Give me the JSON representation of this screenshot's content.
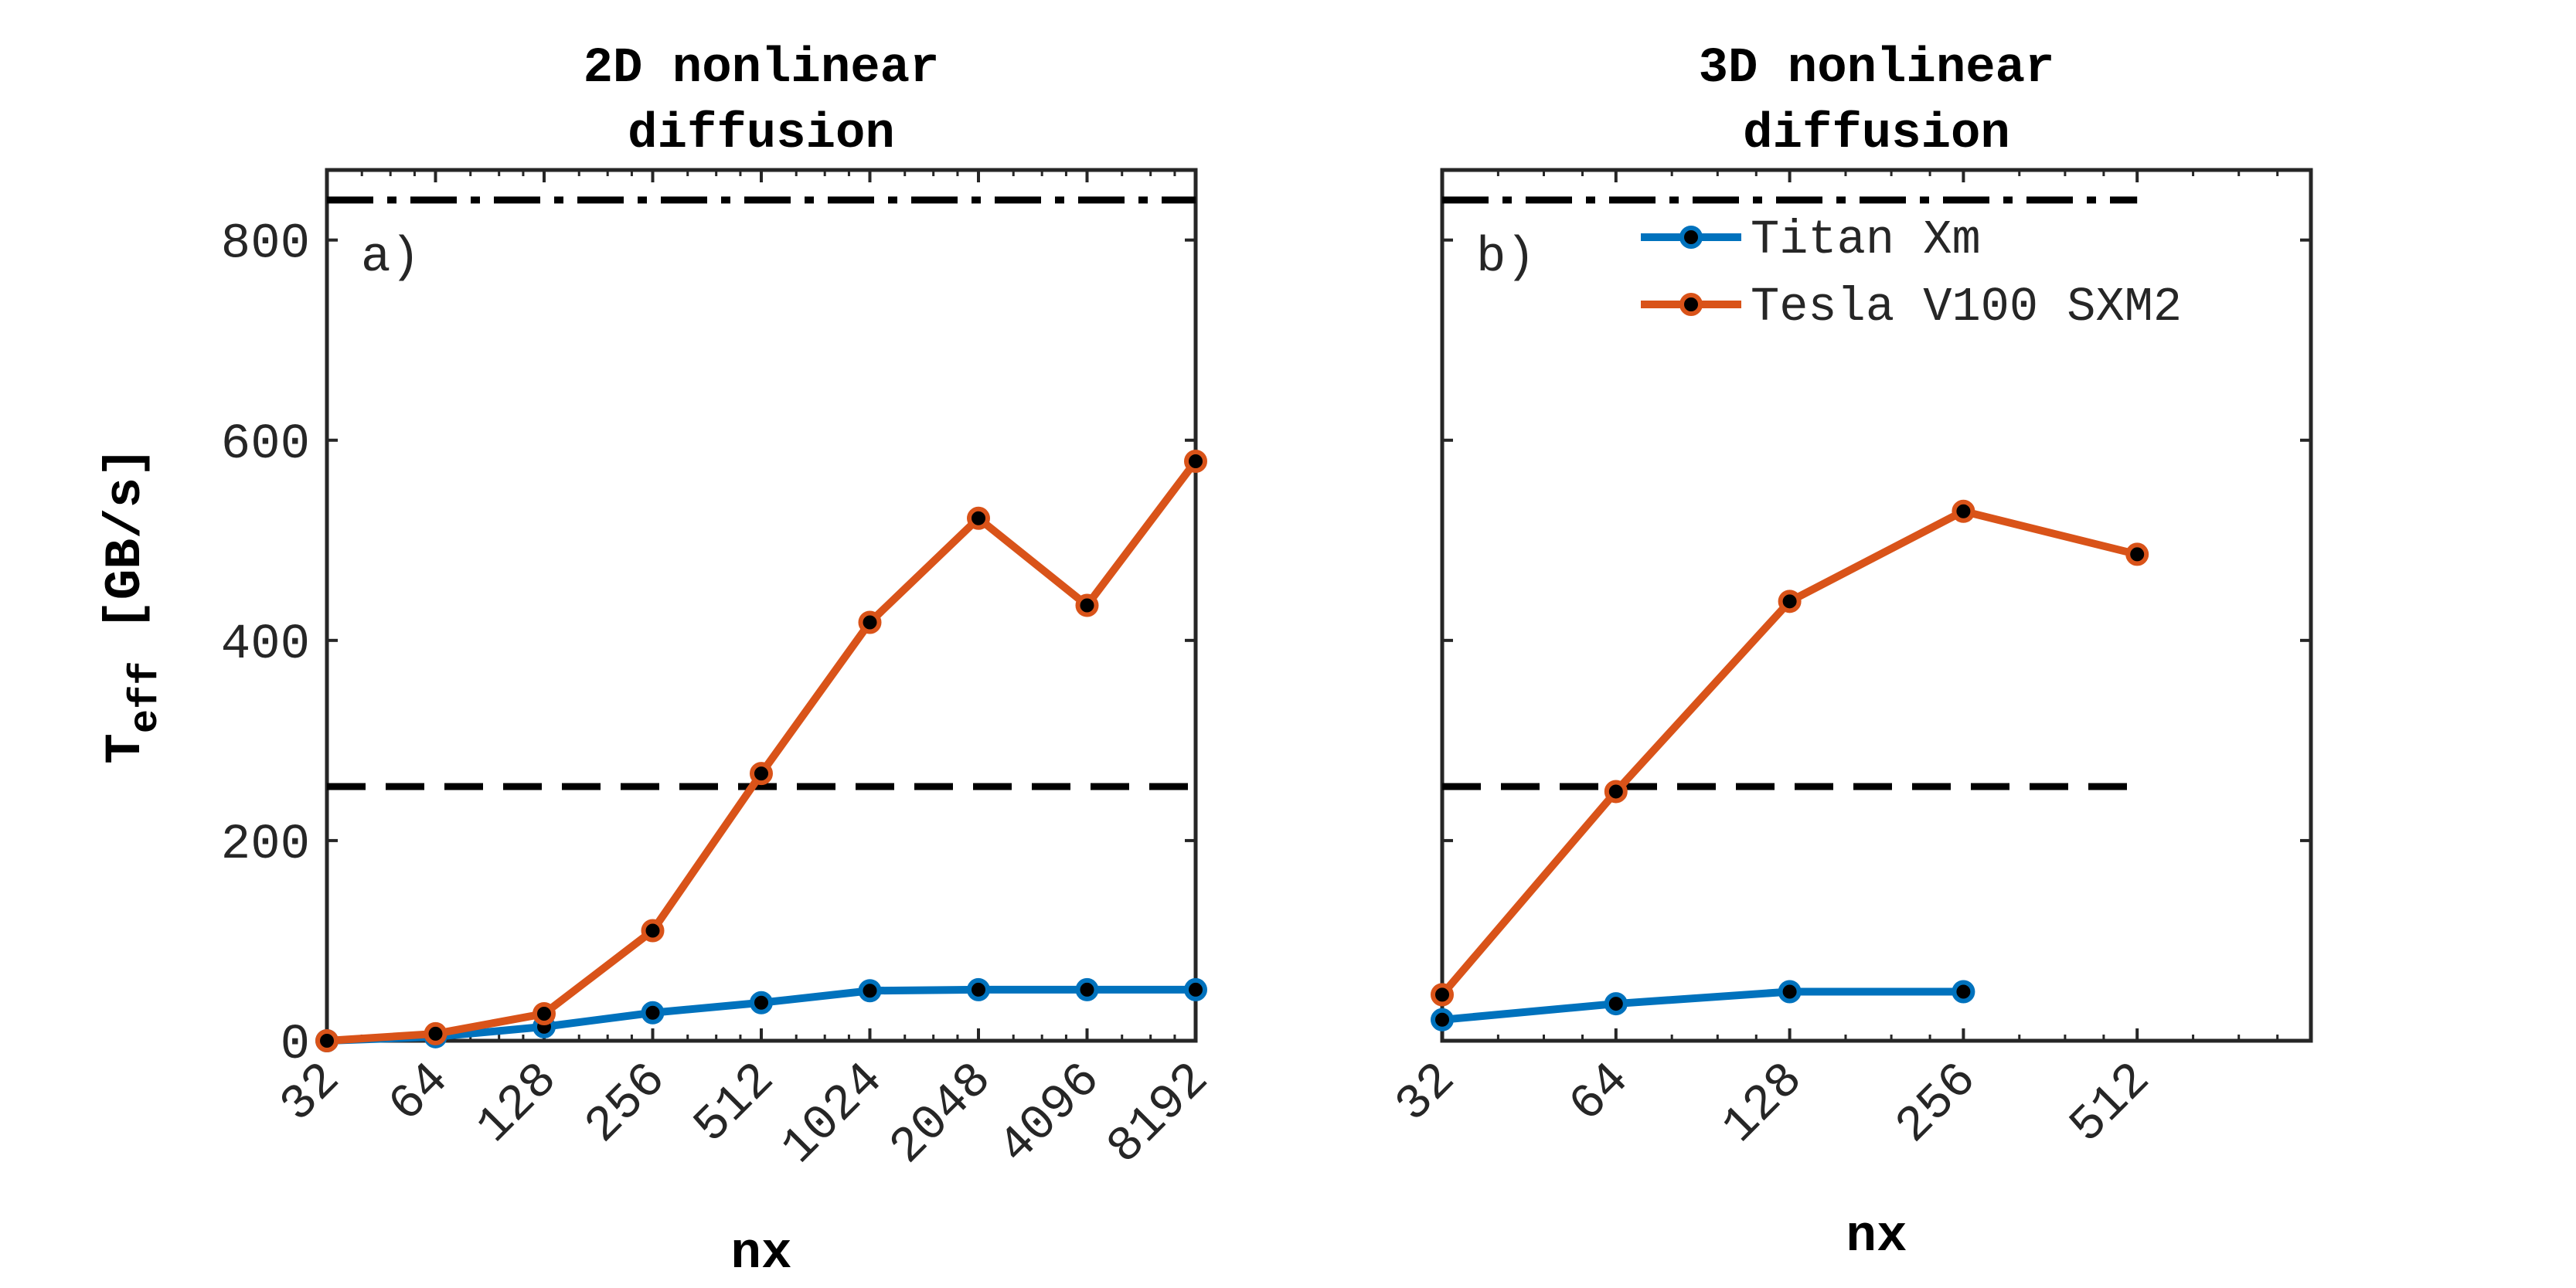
{
  "chart_data": [
    {
      "type": "line",
      "panel_letter": "a)",
      "title_lines": [
        "2D nonlinear",
        "diffusion"
      ],
      "xlabel": "nx",
      "ylabel": "T",
      "ylabel_subscript": "eff",
      "ylabel_units": "[GB/s]",
      "x_scale": "log2",
      "x": [
        32,
        64,
        128,
        256,
        512,
        1024,
        2048,
        4096,
        8192
      ],
      "x_tick_labels": [
        "32",
        "64",
        "128",
        "256",
        "512",
        "1024",
        "2048",
        "4096",
        "8192"
      ],
      "xlim": [
        32,
        8192
      ],
      "ylim": [
        0,
        870
      ],
      "y_ticks": [
        0,
        200,
        400,
        600,
        800
      ],
      "y_tick_labels": [
        "0",
        "200",
        "400",
        "600",
        "800"
      ],
      "show_y_tick_labels": true,
      "grid": false,
      "series": [
        {
          "name": "Titan Xm",
          "color": "#0072BD",
          "values": [
            0,
            4,
            14,
            28,
            38,
            50,
            51,
            51,
            51
          ]
        },
        {
          "name": "Tesla V100 SXM2",
          "color": "#D95319",
          "values": [
            0,
            7,
            27,
            110,
            267,
            418,
            522,
            435,
            579
          ]
        }
      ],
      "reference_lines": [
        {
          "style": "dashdot",
          "value": 840,
          "x_range": [
            32,
            8192
          ]
        },
        {
          "style": "dashed",
          "value": 254,
          "x_range": [
            32,
            8192
          ]
        }
      ]
    },
    {
      "type": "line",
      "panel_letter": "b)",
      "title_lines": [
        "3D nonlinear",
        "diffusion"
      ],
      "xlabel": "nx",
      "x_scale": "log2",
      "x": [
        32,
        64,
        128,
        256,
        512
      ],
      "x_tick_labels": [
        "32",
        "64",
        "128",
        "256",
        "512"
      ],
      "xlim": [
        32,
        1024
      ],
      "ylim": [
        0,
        870
      ],
      "y_ticks": [
        0,
        200,
        400,
        600,
        800
      ],
      "show_y_tick_labels": false,
      "grid": false,
      "legend_position": "top-right",
      "series": [
        {
          "name": "Titan Xm",
          "color": "#0072BD",
          "values": [
            21,
            37,
            49,
            49,
            null
          ]
        },
        {
          "name": "Tesla V100 SXM2",
          "color": "#D95319",
          "values": [
            46,
            249,
            439,
            529,
            486
          ]
        }
      ],
      "reference_lines": [
        {
          "style": "dashdot",
          "value": 840,
          "x_range": [
            32,
            512
          ]
        },
        {
          "style": "dashed",
          "value": 254,
          "x_range": [
            32,
            512
          ]
        }
      ]
    }
  ]
}
